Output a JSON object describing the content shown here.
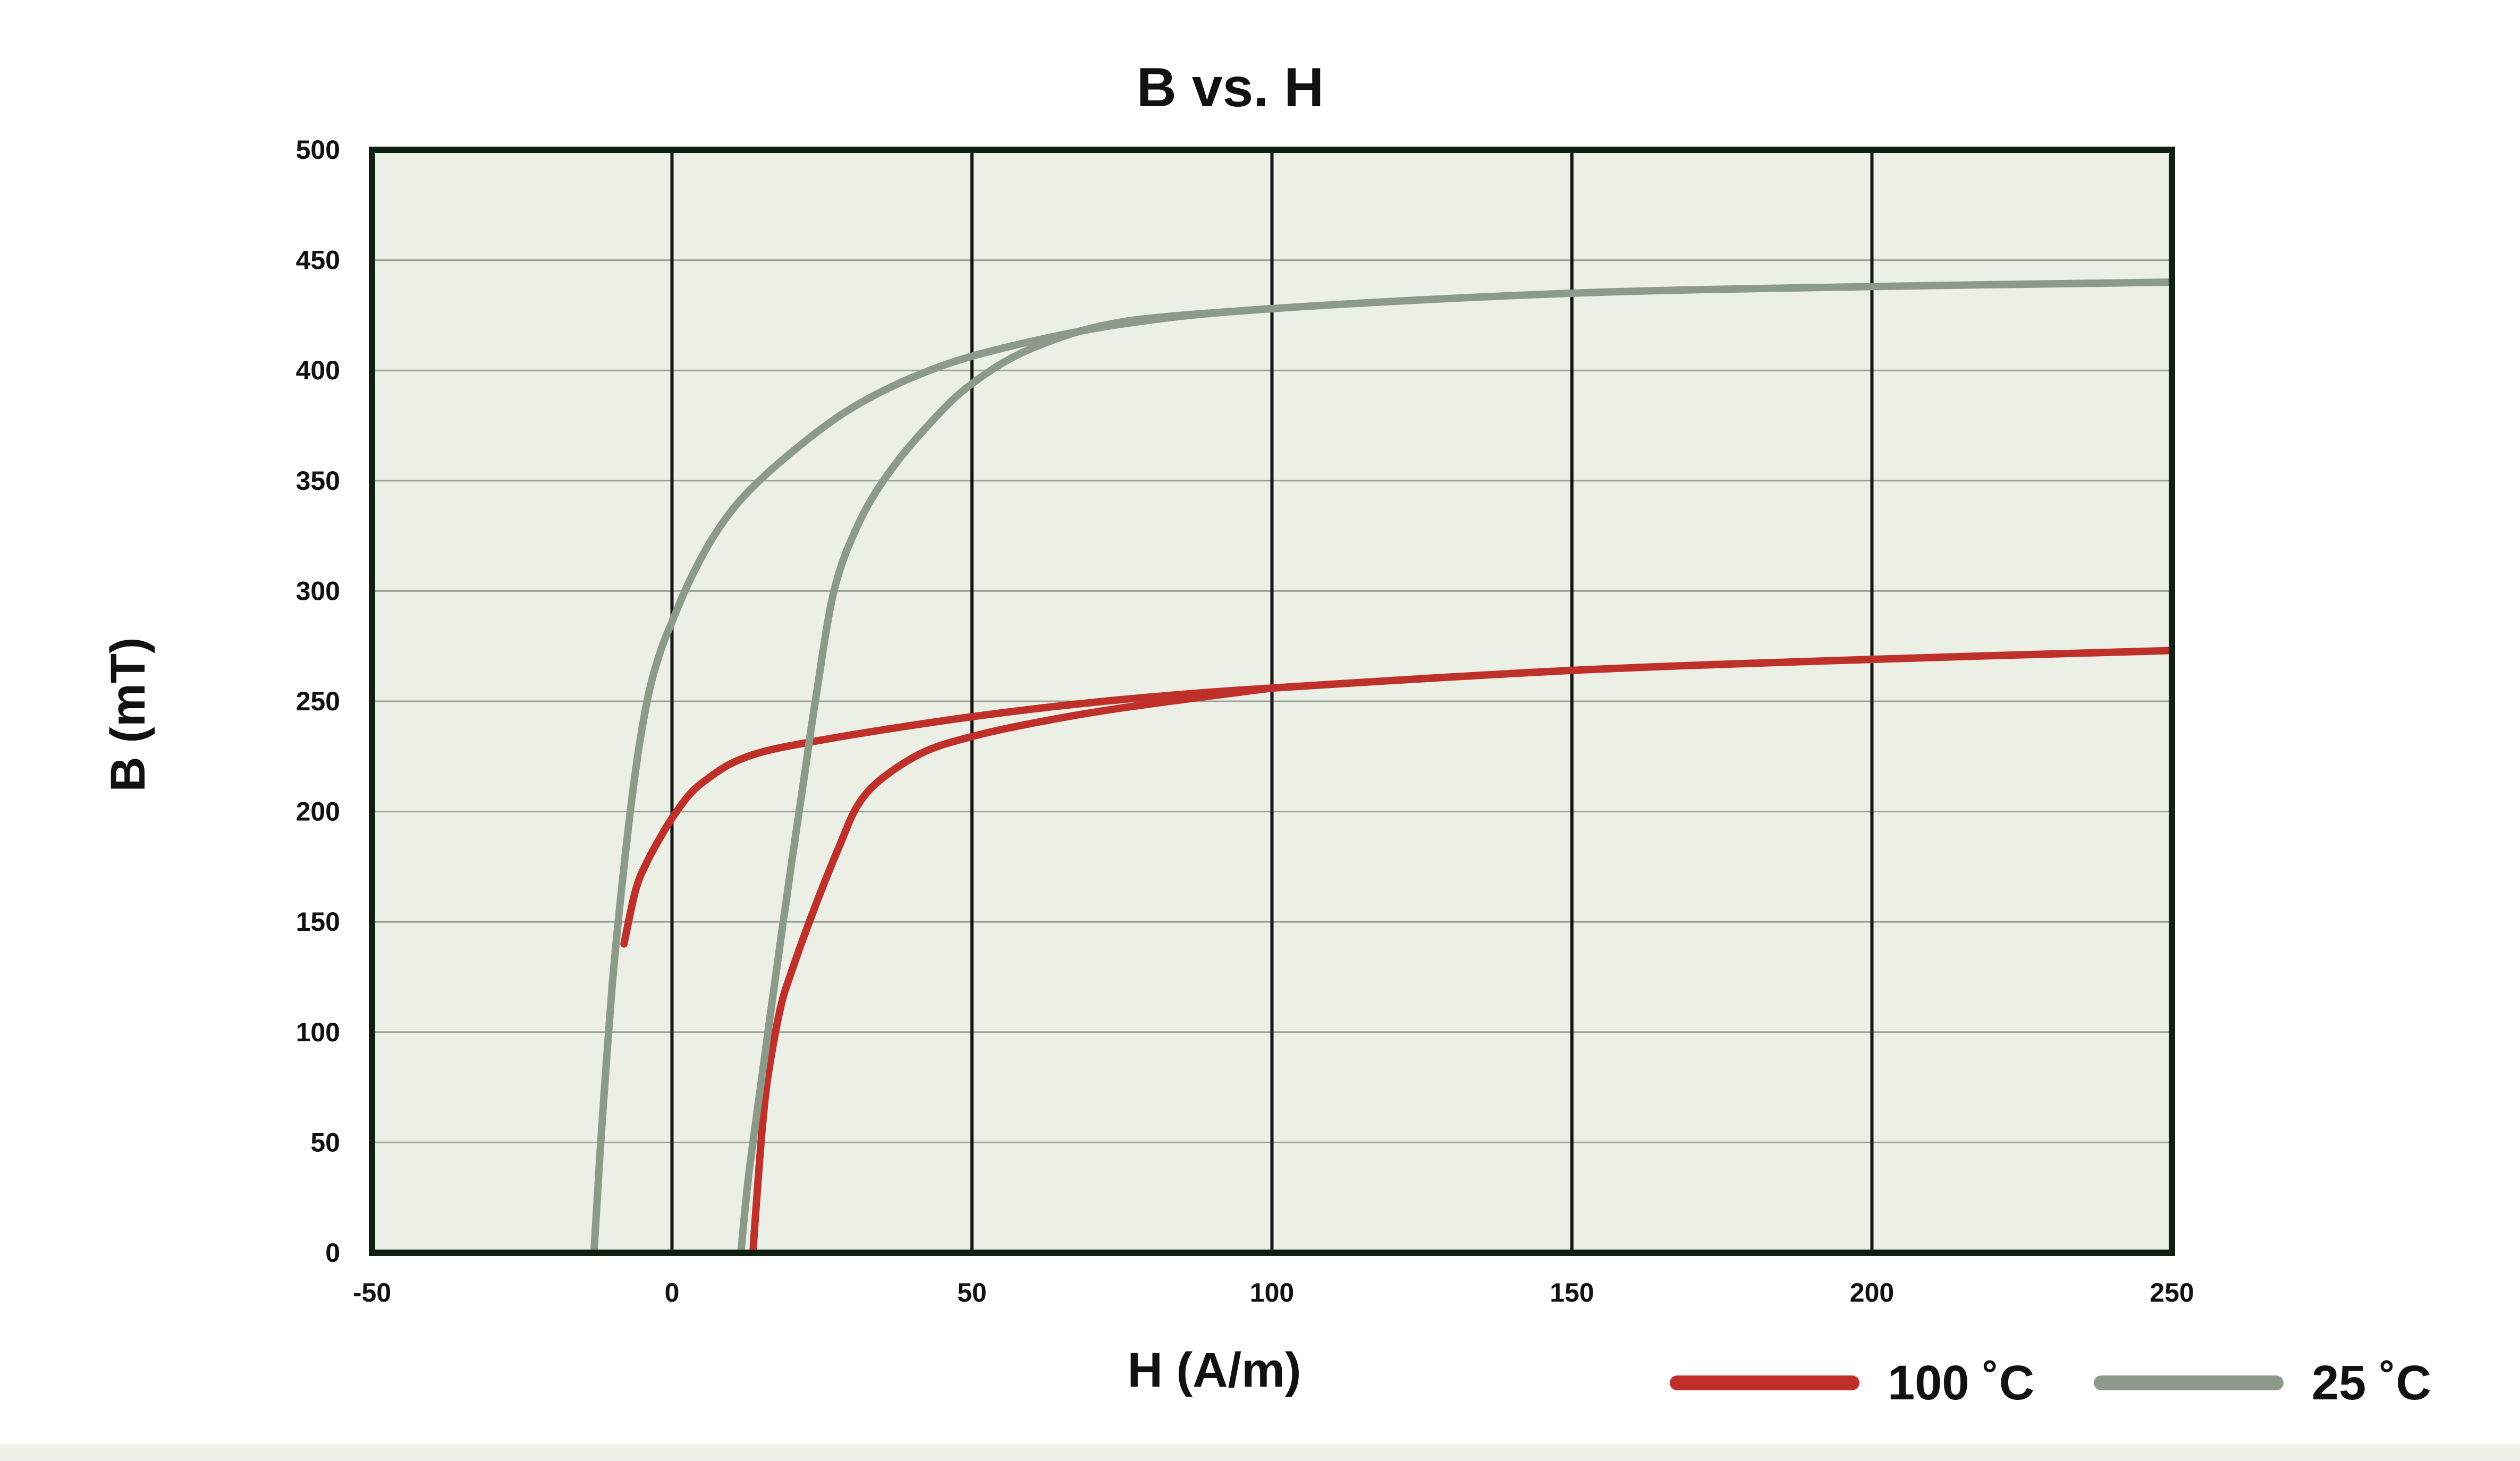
{
  "chart_data": {
    "type": "line",
    "title": "B vs. H",
    "xlabel": "H (A/m)",
    "ylabel": "B (mT)",
    "xlim": [
      -50,
      250
    ],
    "ylim": [
      0,
      500
    ],
    "x_ticks": [
      "-50",
      "0",
      "50",
      "100",
      "150",
      "200",
      "250"
    ],
    "y_ticks": [
      "0",
      "50",
      "100",
      "150",
      "200",
      "250",
      "300",
      "350",
      "400",
      "450",
      "500"
    ],
    "grid": true,
    "legend_position": "bottom-right",
    "plot_background": "#ecefe6",
    "frame_color": "#0f1f10",
    "series": [
      {
        "name": "100 °C",
        "legend_label": "100 ˚C",
        "color": "#c0302a",
        "branches": [
          {
            "x": [
              -8,
              -6,
              -4,
              -2,
              0,
              3,
              6,
              10,
              15,
              22,
              35,
              50,
              65,
              80,
              100,
              150,
              200,
              250
            ],
            "y": [
              140,
              165,
              178,
              188,
              197,
              208,
              215,
              222,
              227,
              231,
              237,
              243,
              248,
              252,
              256,
              264,
              269,
              273
            ]
          },
          {
            "x": [
              13.5,
              14,
              15,
              16,
              18,
              20,
              24,
              28,
              31,
              35,
              42,
              50,
              60,
              75,
              100
            ],
            "y": [
              0,
              20,
              55,
              80,
              110,
              128,
              158,
              185,
              203,
              215,
              227,
              234,
              240,
              247,
              256
            ]
          }
        ]
      },
      {
        "name": "25 °C",
        "legend_label": "25 ˚C",
        "color": "#8c9a8a",
        "branches": [
          {
            "x": [
              -13,
              -12,
              -10,
              -8,
              -6,
              -4,
              -2,
              0,
              3,
              7,
              12,
              20,
              30,
              42,
              55,
              75,
              100,
              150,
              200,
              250
            ],
            "y": [
              0,
              45,
              120,
              175,
              220,
              252,
              272,
              286,
              305,
              325,
              343,
              363,
              383,
              399,
              410,
              421,
              428,
              435,
              438,
              440
            ]
          },
          {
            "x": [
              11.5,
              12,
              13,
              15,
              17,
              20,
              22,
              24,
              27,
              31,
              36,
              43,
              50,
              60,
              75,
              100
            ],
            "y": [
              0,
              15,
              40,
              80,
              120,
              178,
              215,
              252,
              300,
              330,
              353,
              376,
              394,
              410,
              422,
              428
            ]
          }
        ]
      }
    ]
  }
}
